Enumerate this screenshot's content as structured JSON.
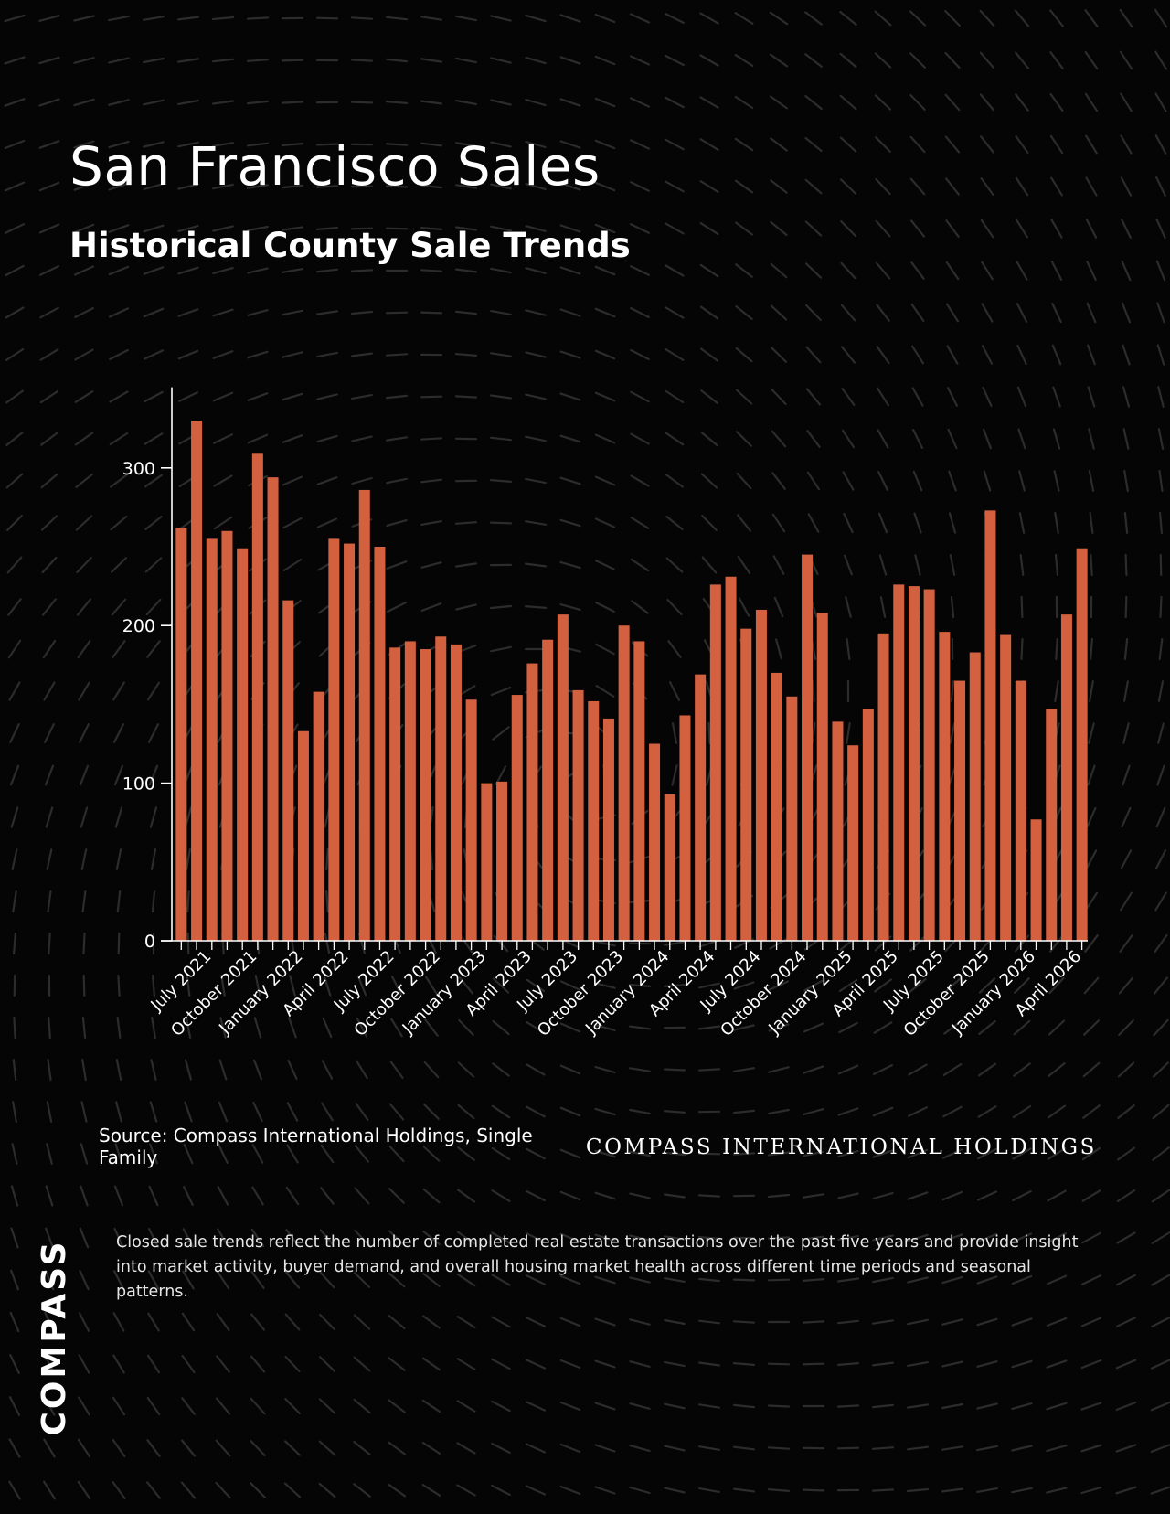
{
  "header": {
    "title": "San Francisco Sales",
    "subtitle": "Historical County Sale Trends"
  },
  "chart_data": {
    "type": "bar",
    "title": "",
    "xlabel": "",
    "ylabel": "",
    "ylim": [
      0,
      350
    ],
    "yticks": [
      0,
      100,
      200,
      300
    ],
    "grid": false,
    "bar_color": "#d3603f",
    "tick_labels": [
      "July 2021",
      "October 2021",
      "January 2022",
      "April 2022",
      "July 2022",
      "October 2022",
      "January 2023",
      "April 2023",
      "July 2023",
      "October 2023",
      "January 2024",
      "April 2024",
      "July 2024",
      "October 2024",
      "January 2025",
      "April 2025",
      "July 2025",
      "October 2025",
      "January 2026",
      "April 2026"
    ],
    "values": [
      262,
      330,
      255,
      260,
      249,
      309,
      294,
      216,
      133,
      158,
      255,
      252,
      286,
      250,
      186,
      190,
      185,
      193,
      188,
      153,
      100,
      101,
      156,
      176,
      191,
      207,
      159,
      152,
      141,
      200,
      190,
      125,
      93,
      143,
      169,
      226,
      231,
      198,
      210,
      170,
      155,
      245,
      208,
      139,
      124,
      147,
      195,
      226,
      225,
      223,
      196,
      165,
      183,
      273,
      194,
      165,
      77,
      147,
      207,
      249
    ]
  },
  "footer": {
    "source": "Source: Compass International Holdings, Single Family",
    "brand_text": "COMPASS INTERNATIONAL HOLDINGS",
    "description": "Closed sale trends reflect the number of completed real estate transactions over the past five years and provide insight into market activity, buyer demand, and overall housing market health across different time periods and seasonal patterns.",
    "logo": "COMPASS"
  }
}
